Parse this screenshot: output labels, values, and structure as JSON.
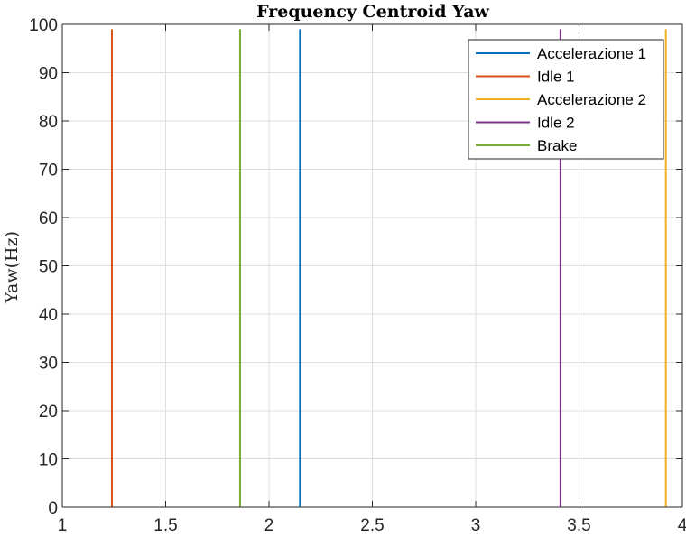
{
  "chart_data": {
    "type": "line",
    "title": "Frequency Centroid Yaw",
    "xlabel": "",
    "ylabel": "Yaw(Hz)",
    "xlim": [
      1,
      4
    ],
    "ylim": [
      0,
      100
    ],
    "xticks": [
      "1",
      "1.5",
      "2",
      "2.5",
      "3",
      "3.5",
      "4"
    ],
    "xtick_values": [
      1,
      1.5,
      2,
      2.5,
      3,
      3.5,
      4
    ],
    "yticks": [
      "0",
      "10",
      "20",
      "30",
      "40",
      "50",
      "60",
      "70",
      "80",
      "90",
      "100"
    ],
    "ytick_values": [
      0,
      10,
      20,
      30,
      40,
      50,
      60,
      70,
      80,
      90,
      100
    ],
    "grid": true,
    "legend_position": "top-right",
    "series": [
      {
        "name": "Accelerazione 1",
        "color": "#0072bd",
        "x": [
          2.15,
          2.15
        ],
        "y": [
          0,
          99
        ]
      },
      {
        "name": "Idle 1",
        "color": "#d95319",
        "x": [
          1.24,
          1.24
        ],
        "y": [
          0,
          99
        ]
      },
      {
        "name": "Accelerazione 2",
        "color": "#edb120",
        "x": [
          3.92,
          3.92
        ],
        "y": [
          0,
          99
        ]
      },
      {
        "name": "Idle 2",
        "color": "#7e2f8e",
        "x": [
          3.41,
          3.41
        ],
        "y": [
          0,
          99
        ]
      },
      {
        "name": "Brake",
        "color": "#77ac30",
        "x": [
          1.86,
          1.86
        ],
        "y": [
          0,
          99
        ]
      }
    ]
  }
}
